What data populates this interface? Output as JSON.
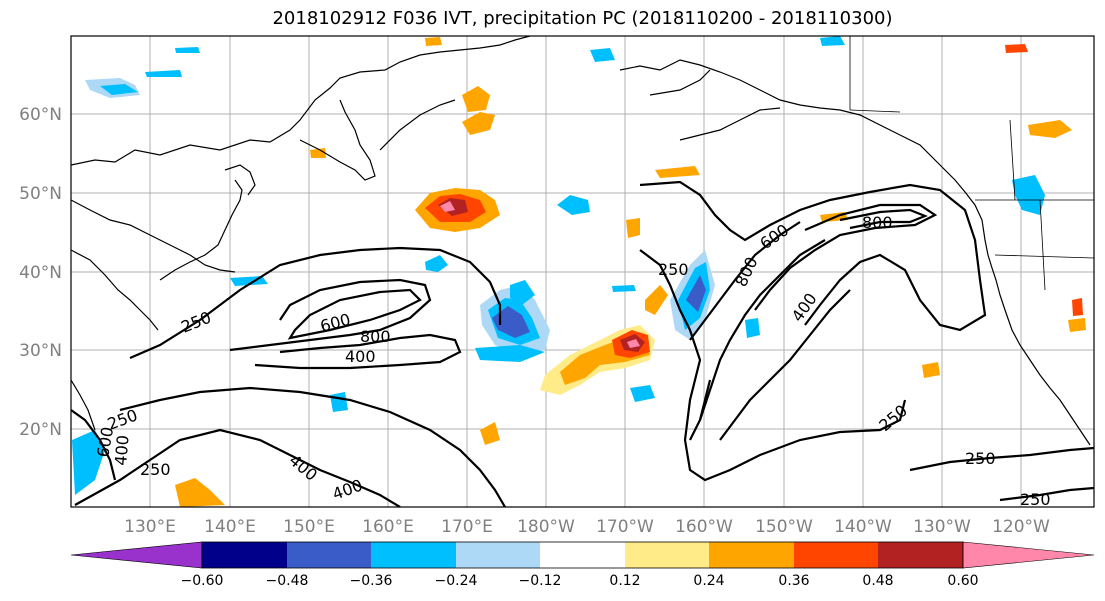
{
  "title": "2018102912 F036 IVT, precipitation PC (2018110200 - 2018110300)",
  "lat_labels": [
    "60°N",
    "50°N",
    "40°N",
    "30°N",
    "20°N"
  ],
  "lon_labels": [
    "130°E",
    "140°E",
    "150°E",
    "160°E",
    "170°E",
    "180°W",
    "170°W",
    "160°W",
    "150°W",
    "140°W",
    "130°W",
    "120°W"
  ],
  "contour_labels": [
    "250",
    "600",
    "800",
    "400",
    "250",
    "800",
    "600",
    "800",
    "400",
    "250",
    "250",
    "400",
    "400",
    "250",
    "250",
    "250",
    "600",
    "400"
  ],
  "colorbar": {
    "colors": [
      "#9932cc",
      "#00008b",
      "#3a5cc9",
      "#00bfff",
      "#add8f6",
      "#ffffff",
      "#ffeb88",
      "#ffa500",
      "#ff4500",
      "#b22222",
      "#ff88aa"
    ],
    "tick_labels": [
      "−0.60",
      "−0.48",
      "−0.36",
      "−0.24",
      "−0.12",
      "0.12",
      "0.24",
      "0.36",
      "0.48",
      "0.60"
    ]
  }
}
